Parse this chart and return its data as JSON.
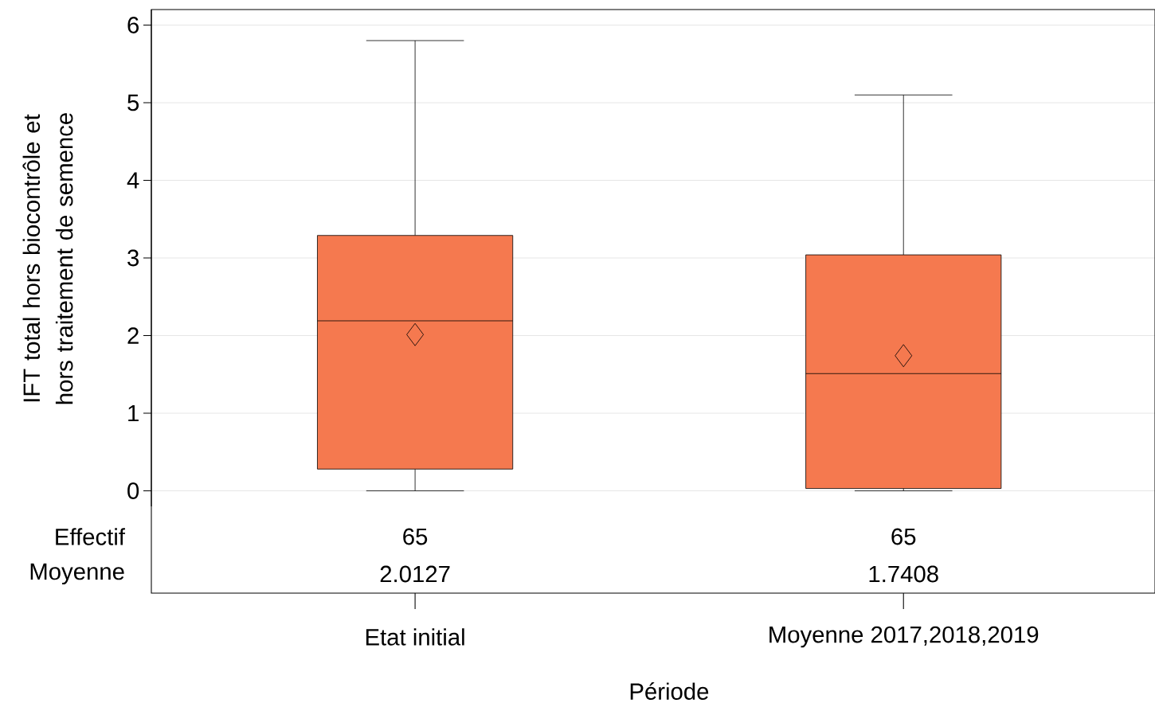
{
  "chart_data": {
    "type": "box",
    "xlabel": "Période",
    "ylabel": "IFT total hors biocontrôle et hors traitement de semence",
    "categories": [
      "Etat initial",
      "Moyenne 2017,2018,2019"
    ],
    "color": "#f5794f",
    "boxes": [
      {
        "low": 0,
        "q1": 0.28,
        "median": 2.19,
        "q3": 3.29,
        "high": 5.8,
        "mean": 2.0127
      },
      {
        "low": 0,
        "q1": 0.03,
        "median": 1.51,
        "q3": 3.04,
        "high": 5.1,
        "mean": 1.7408
      }
    ],
    "ylim": [
      -0.2,
      6.2
    ],
    "yticks": [
      0,
      1,
      2,
      3,
      4,
      5,
      6
    ],
    "grid": "y",
    "annotations": [
      "Effectif",
      "Moyenne",
      "65",
      "65",
      "2.0127",
      "1.7408"
    ]
  }
}
